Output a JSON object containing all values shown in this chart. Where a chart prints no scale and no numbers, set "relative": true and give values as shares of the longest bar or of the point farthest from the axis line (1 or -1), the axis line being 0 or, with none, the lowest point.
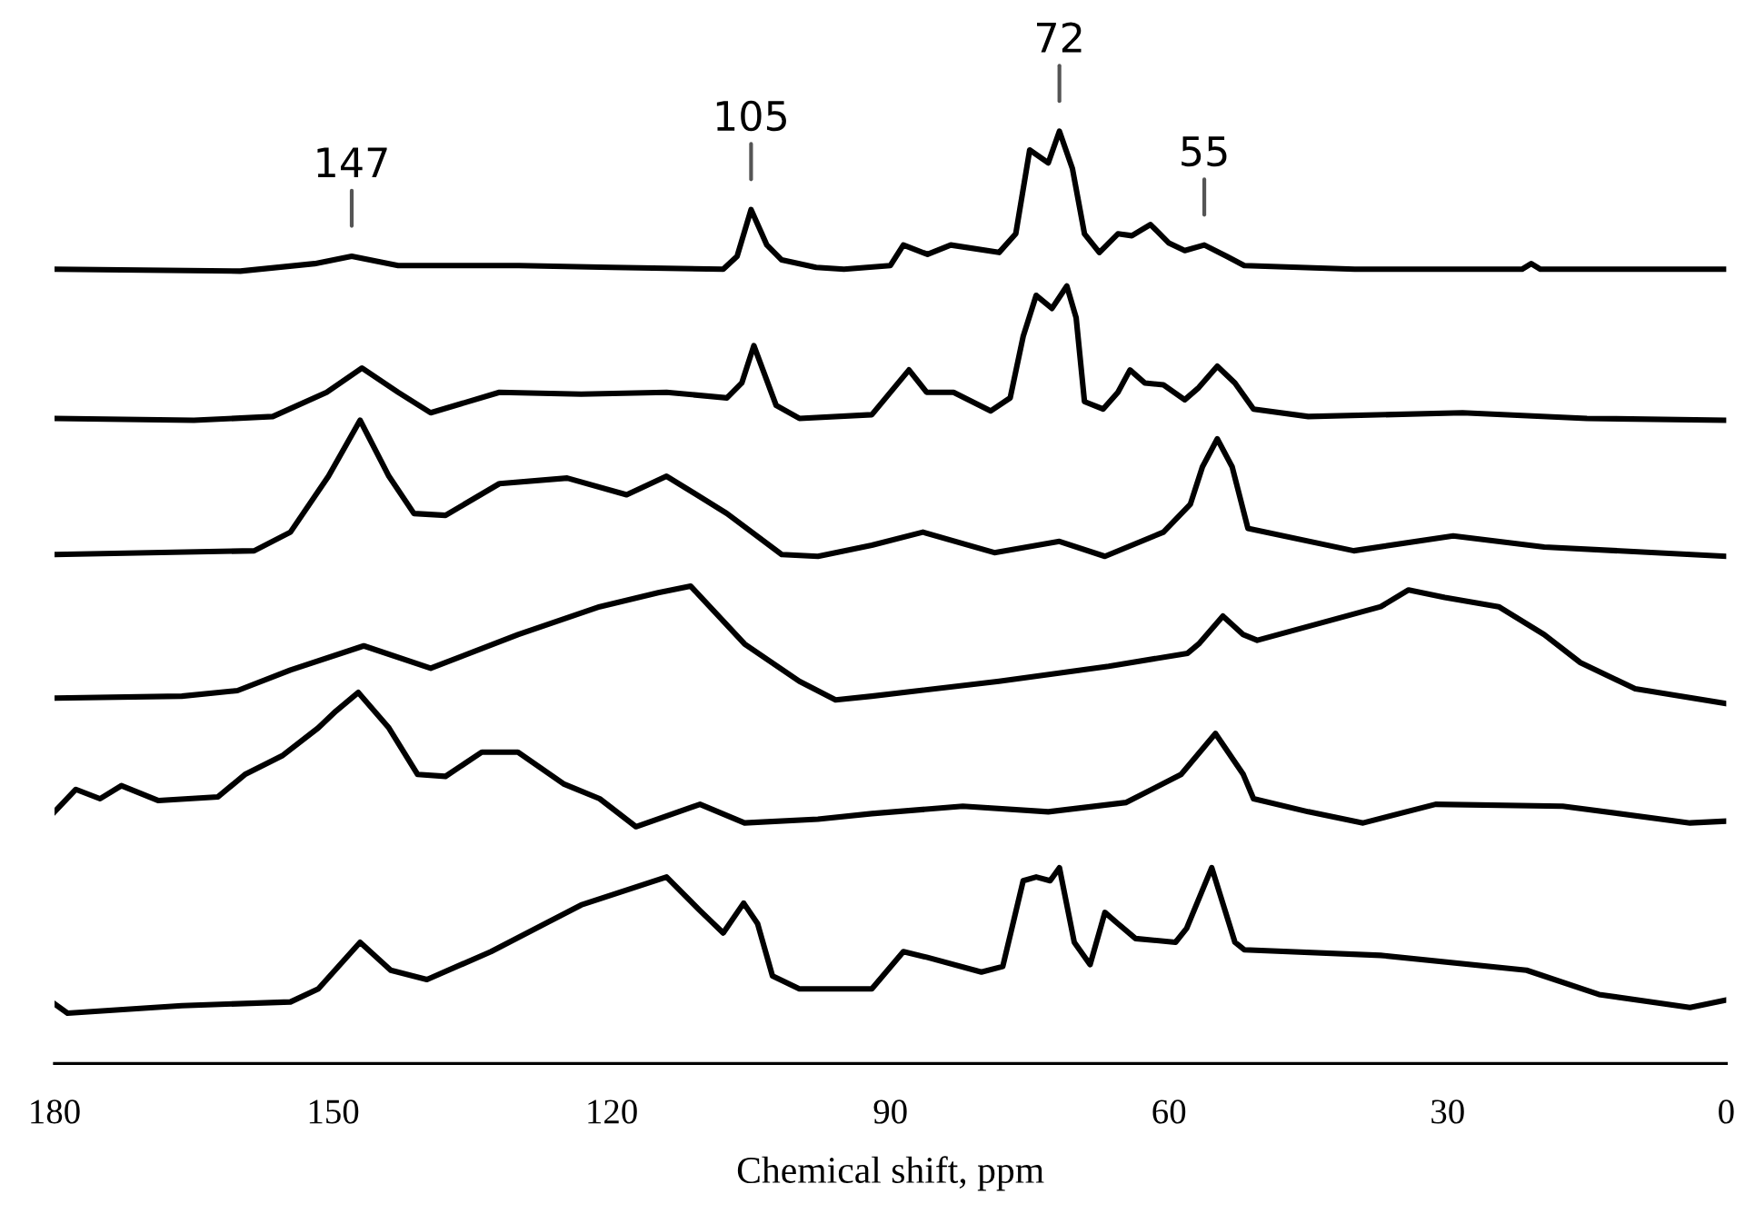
{
  "chart_data": {
    "type": "line",
    "relative": true,
    "xlabel": "Chemical shift, ppm",
    "xlim": [
      180,
      0
    ],
    "xticks": [
      180,
      150,
      120,
      90,
      60,
      30,
      0
    ],
    "tick_labels": "x",
    "marker": "none",
    "line_style": "solid",
    "annotations": [
      {
        "text": "147",
        "x": 148,
        "y": 0.866
      },
      {
        "text": "105",
        "x": 105,
        "y": 0.916
      },
      {
        "text": "72",
        "x": 71.8,
        "y": 1.0
      },
      {
        "text": "55",
        "x": 56.2,
        "y": 0.878
      }
    ],
    "series": [
      {
        "color": "#000000",
        "x": [
          180,
          160,
          152,
          148,
          143,
          130,
          120,
          108,
          106.5,
          105,
          103.3,
          101.7,
          98,
          95,
          90,
          88.6,
          86,
          83.5,
          78.3,
          76.5,
          75,
          73,
          71.8,
          70.4,
          69.1,
          67.5,
          65.5,
          64,
          62,
          60,
          58.3,
          56.2,
          53.8,
          51.9,
          40,
          22,
          21,
          20,
          0
        ],
        "values": [
          0.852,
          0.85,
          0.858,
          0.866,
          0.856,
          0.856,
          0.854,
          0.852,
          0.866,
          0.916,
          0.878,
          0.862,
          0.854,
          0.852,
          0.856,
          0.878,
          0.868,
          0.878,
          0.87,
          0.89,
          0.98,
          0.966,
          1.0,
          0.96,
          0.89,
          0.87,
          0.89,
          0.888,
          0.9,
          0.88,
          0.872,
          0.878,
          0.866,
          0.856,
          0.852,
          0.852,
          0.858,
          0.852,
          0.852
        ]
      },
      {
        "color": "#000000",
        "x": [
          180,
          165,
          156.5,
          150.7,
          146.9,
          143,
          139.5,
          132.1,
          123.3,
          114.1,
          107.6,
          106,
          104.7,
          102.3,
          99.8,
          92,
          88,
          86.1,
          83.2,
          79.2,
          77.1,
          75.7,
          74.3,
          72.6,
          71,
          70,
          69.1,
          67.1,
          65.5,
          64.2,
          62.6,
          60.6,
          58.3,
          56.8,
          54.8,
          52.9,
          50.9,
          45,
          28.4,
          15,
          0
        ],
        "values": [
          0.692,
          0.69,
          0.694,
          0.72,
          0.746,
          0.72,
          0.698,
          0.72,
          0.718,
          0.72,
          0.714,
          0.73,
          0.77,
          0.706,
          0.692,
          0.696,
          0.744,
          0.72,
          0.72,
          0.7,
          0.714,
          0.78,
          0.824,
          0.81,
          0.834,
          0.8,
          0.71,
          0.702,
          0.72,
          0.744,
          0.73,
          0.728,
          0.712,
          0.725,
          0.748,
          0.73,
          0.702,
          0.694,
          0.698,
          0.692,
          0.69
        ]
      },
      {
        "color": "#000000",
        "x": [
          180,
          158.5,
          154.6,
          150.5,
          147.1,
          144,
          141.3,
          137.9,
          132.1,
          124.8,
          118.4,
          114.1,
          107.6,
          101.7,
          97.8,
          92,
          86.5,
          78.8,
          71.8,
          66.9,
          60.6,
          57.7,
          56.4,
          54.8,
          53.2,
          51.5,
          40.1,
          29.4,
          19.6,
          0
        ],
        "values": [
          0.546,
          0.55,
          0.57,
          0.63,
          0.69,
          0.63,
          0.59,
          0.588,
          0.622,
          0.628,
          0.61,
          0.63,
          0.59,
          0.546,
          0.544,
          0.556,
          0.57,
          0.548,
          0.56,
          0.544,
          0.57,
          0.6,
          0.64,
          0.67,
          0.64,
          0.574,
          0.55,
          0.566,
          0.554,
          0.544
        ]
      },
      {
        "color": "#000000",
        "x": [
          180,
          166.3,
          160.3,
          154.6,
          146.7,
          139.5,
          130.1,
          121.3,
          115,
          111.5,
          105.7,
          99.8,
          95.9,
          92,
          78.3,
          66.5,
          58,
          56.8,
          54.2,
          52,
          50.5,
          37.2,
          34.2,
          30.3,
          24.5,
          19.6,
          15.7,
          9.8,
          0
        ],
        "values": [
          0.392,
          0.394,
          0.4,
          0.422,
          0.448,
          0.424,
          0.46,
          0.49,
          0.505,
          0.512,
          0.45,
          0.41,
          0.39,
          0.394,
          0.41,
          0.426,
          0.44,
          0.45,
          0.48,
          0.46,
          0.454,
          0.49,
          0.508,
          0.5,
          0.49,
          0.46,
          0.43,
          0.402,
          0.386
        ]
      },
      {
        "color": "#000000",
        "x": [
          180,
          177.7,
          175.1,
          172.8,
          168.8,
          162.4,
          159.5,
          155.5,
          151.6,
          149.7,
          147.3,
          144,
          140.9,
          137.9,
          134,
          130.1,
          125.2,
          121.3,
          117.4,
          110.5,
          105.7,
          97.8,
          92,
          82.2,
          73,
          64.6,
          58.7,
          55,
          52,
          50.9,
          45,
          39.1,
          31.3,
          17.6,
          3.9,
          0
        ],
        "values": [
          0.27,
          0.294,
          0.284,
          0.298,
          0.282,
          0.286,
          0.31,
          0.33,
          0.36,
          0.378,
          0.398,
          0.36,
          0.31,
          0.308,
          0.334,
          0.334,
          0.3,
          0.284,
          0.254,
          0.278,
          0.258,
          0.262,
          0.268,
          0.276,
          0.27,
          0.28,
          0.31,
          0.354,
          0.31,
          0.284,
          0.27,
          0.258,
          0.278,
          0.276,
          0.258,
          0.26
        ]
      },
      {
        "color": "#000000",
        "x": [
          180,
          178.6,
          166.3,
          154.6,
          151.6,
          147.1,
          143.8,
          139.9,
          133,
          123.3,
          114.1,
          110.5,
          108,
          105.8,
          104.3,
          102.7,
          99.8,
          92,
          88.6,
          86.1,
          80.2,
          77.9,
          75.7,
          74.3,
          72.8,
          71.8,
          70.2,
          68.5,
          66.9,
          65.5,
          63.6,
          59.3,
          58.1,
          55.4,
          52.9,
          51.9,
          37.2,
          21.5,
          13.7,
          3.9,
          0
        ],
        "values": [
          0.064,
          0.054,
          0.062,
          0.066,
          0.08,
          0.13,
          0.1,
          0.09,
          0.12,
          0.17,
          0.2,
          0.164,
          0.14,
          0.172,
          0.15,
          0.094,
          0.08,
          0.08,
          0.12,
          0.114,
          0.098,
          0.104,
          0.196,
          0.2,
          0.196,
          0.21,
          0.13,
          0.106,
          0.162,
          0.15,
          0.134,
          0.13,
          0.145,
          0.21,
          0.13,
          0.122,
          0.116,
          0.1,
          0.074,
          0.06,
          0.068
        ]
      }
    ]
  }
}
